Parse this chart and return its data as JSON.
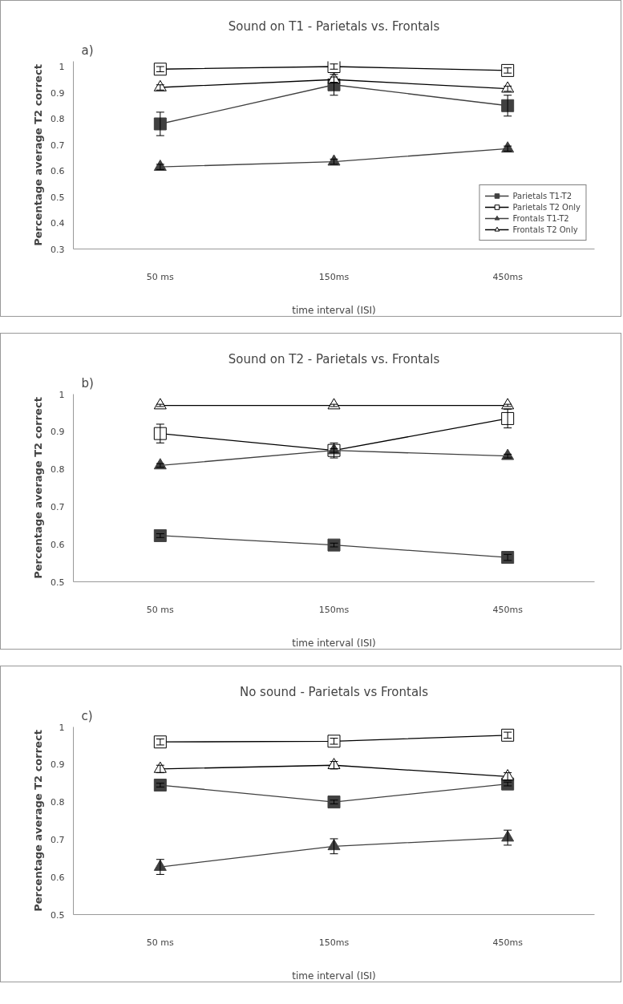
{
  "chart_data": [
    {
      "type": "line",
      "title": "Sound on T1 - Parietals vs. Frontals",
      "annotations": [
        "a)"
      ],
      "xlabel": "time interval (ISI)",
      "ylabel": "Percentage average T2 correct",
      "categories": [
        "50 ms",
        "150ms",
        "450ms"
      ],
      "ylim": [
        0.3,
        1.02
      ],
      "yticks": [
        0.3,
        0.4,
        0.5,
        0.6,
        0.7,
        0.8,
        0.9,
        1
      ],
      "grid": false,
      "legend": "bottom right",
      "series": [
        {
          "name": "Parietals T1-T2",
          "color": "#404040",
          "marker": "square",
          "values": [
            0.78,
            0.93,
            0.85
          ],
          "errors": [
            0.045,
            0.04,
            0.04
          ]
        },
        {
          "name": "Parietals T2 Only",
          "color": "#000000",
          "marker": "square",
          "values": [
            0.99,
            1.0,
            0.985
          ],
          "errors": [
            0.01,
            0.01,
            0.01
          ]
        },
        {
          "name": "Frontals T1-T2",
          "color": "#404040",
          "marker": "triangle",
          "values": [
            0.615,
            0.635,
            0.685
          ],
          "errors": [
            0.01,
            0.01,
            0.01
          ]
        },
        {
          "name": "Frontals T2 Only",
          "color": "#000000",
          "marker": "triangle",
          "values": [
            0.92,
            0.95,
            0.915
          ],
          "errors": [
            0.01,
            0.01,
            0.01
          ]
        }
      ]
    },
    {
      "type": "line",
      "title": "Sound on T2 - Parietals vs. Frontals",
      "annotations": [
        "b)"
      ],
      "xlabel": "time interval (ISI)",
      "ylabel": "Percentage average T2 correct",
      "categories": [
        "50 ms",
        "150ms",
        "450ms"
      ],
      "ylim": [
        0.5,
        1.0
      ],
      "yticks": [
        0.5,
        0.6,
        0.7,
        0.8,
        0.9,
        1
      ],
      "grid": false,
      "legend": false,
      "series": [
        {
          "color": "#404040",
          "marker": "square",
          "values": [
            0.623,
            0.598,
            0.565
          ],
          "errors": [
            0.005,
            0.005,
            0.008
          ]
        },
        {
          "color": "#000000",
          "marker": "square",
          "values": [
            0.895,
            0.85,
            0.935
          ],
          "errors": [
            0.025,
            0.02,
            0.025
          ]
        },
        {
          "color": "#404040",
          "marker": "triangle",
          "values": [
            0.81,
            0.85,
            0.835
          ],
          "errors": [
            0.005,
            0.005,
            0.005
          ]
        },
        {
          "color": "#000000",
          "marker": "triangle",
          "values": [
            0.97,
            0.97,
            0.97
          ],
          "errors": [
            0.003,
            0.003,
            0.003
          ]
        }
      ]
    },
    {
      "type": "line",
      "title": "No sound - Parietals vs Frontals",
      "annotations": [
        "c)"
      ],
      "xlabel": "time interval (ISI)",
      "ylabel": "Percentage average T2 correct",
      "categories": [
        "50 ms",
        "150ms",
        "450ms"
      ],
      "ylim": [
        0.5,
        1.0
      ],
      "yticks": [
        0.5,
        0.6,
        0.7,
        0.8,
        0.9,
        1
      ],
      "grid": false,
      "legend": false,
      "series": [
        {
          "color": "#404040",
          "marker": "square",
          "values": [
            0.845,
            0.8,
            0.848
          ],
          "errors": [
            0.005,
            0.005,
            0.005
          ]
        },
        {
          "color": "#000000",
          "marker": "square",
          "values": [
            0.96,
            0.962,
            0.978
          ],
          "errors": [
            0.008,
            0.008,
            0.008
          ]
        },
        {
          "color": "#404040",
          "marker": "triangle",
          "values": [
            0.627,
            0.682,
            0.705
          ],
          "errors": [
            0.02,
            0.02,
            0.02
          ]
        },
        {
          "color": "#000000",
          "marker": "triangle",
          "values": [
            0.888,
            0.898,
            0.868
          ],
          "errors": [
            0.01,
            0.01,
            0.01
          ]
        }
      ]
    }
  ]
}
